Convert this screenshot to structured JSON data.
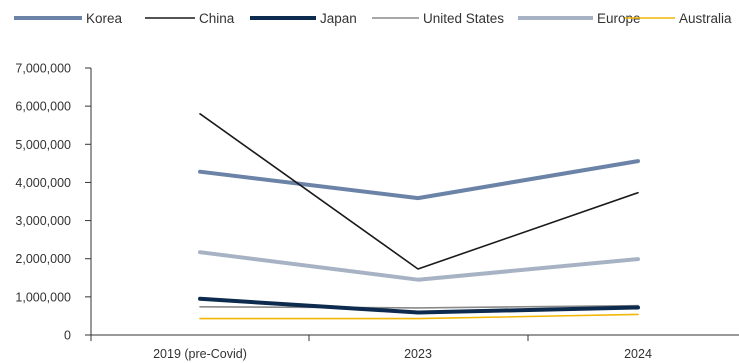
{
  "chart_data": {
    "type": "line",
    "title": "",
    "xlabel": "",
    "ylabel": "",
    "categories": [
      "2019 (pre-Covid)",
      "2023",
      "2024"
    ],
    "ylim": [
      0,
      7000000
    ],
    "yticks": [
      0,
      1000000,
      2000000,
      3000000,
      4000000,
      5000000,
      6000000,
      7000000
    ],
    "ytick_labels": [
      "0",
      "1,000,000",
      "2,000,000",
      "3,000,000",
      "4,000,000",
      "5,000,000",
      "6,000,000",
      "7,000,000"
    ],
    "grid": false,
    "legend_position": "top",
    "series": [
      {
        "name": "Korea",
        "color": "#6b83a6",
        "values": [
          4280000,
          3590000,
          4560000
        ]
      },
      {
        "name": "China",
        "color": "#1a1a1a",
        "values": [
          5800000,
          1730000,
          3730000
        ]
      },
      {
        "name": "Japan",
        "color": "#0d2a4f",
        "values": [
          950000,
          590000,
          720000
        ]
      },
      {
        "name": "United States",
        "color": "#8a8a8a",
        "values": [
          740000,
          710000,
          770000
        ]
      },
      {
        "name": "Europe",
        "color": "#a7b3c4",
        "values": [
          2170000,
          1450000,
          1990000
        ]
      },
      {
        "name": "Australia",
        "color": "#f2b705",
        "values": [
          430000,
          430000,
          540000
        ]
      }
    ]
  }
}
